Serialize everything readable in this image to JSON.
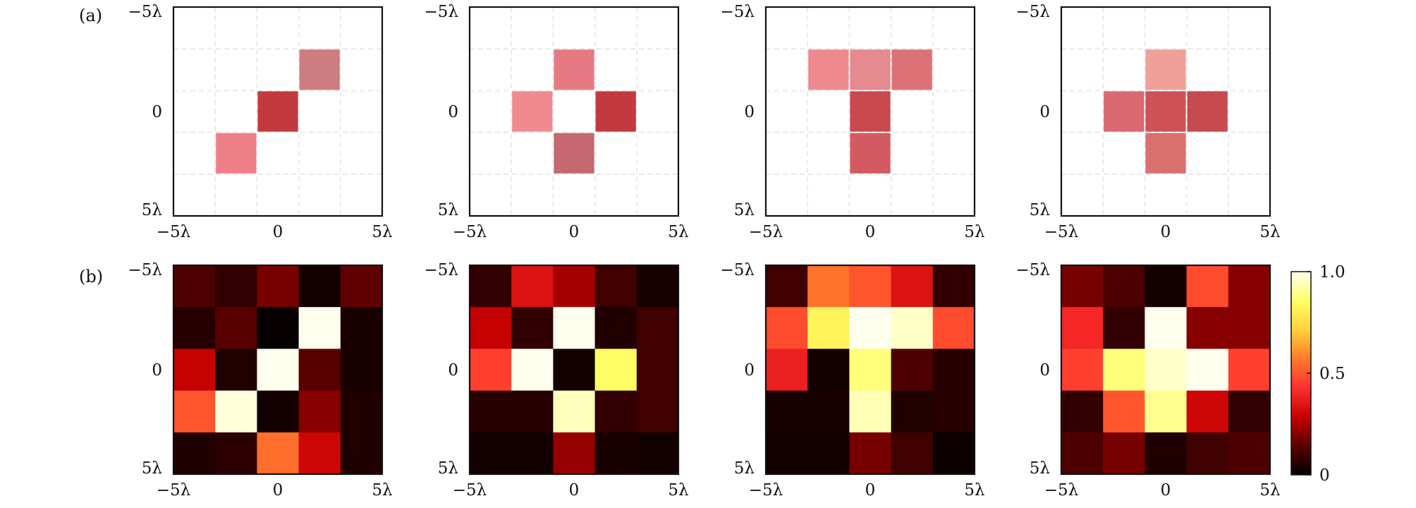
{
  "panel_labels": {
    "a": "(a)",
    "b": "(b)"
  },
  "axis_ticks": [
    "−5λ",
    "0",
    "5λ"
  ],
  "colorbar": {
    "ticks": [
      {
        "value": 1.0,
        "label": "1.0"
      },
      {
        "value": 0.5,
        "label": "0.5"
      },
      {
        "value": 0.0,
        "label": "0"
      }
    ],
    "stops": [
      "#000000",
      "#5a0000",
      "#c80000",
      "#ff3030",
      "#ff7a2a",
      "#ffd23a",
      "#ffff66",
      "#ffffee"
    ]
  },
  "chart_data": [
    {
      "type": "heatmap",
      "row": "a",
      "shape": "diagonal",
      "x_range": [
        "−5λ",
        "5λ"
      ],
      "y_range": [
        "−5λ",
        "5λ"
      ],
      "grid": true,
      "cells": [
        {
          "r": 1,
          "c": 3,
          "color": "#cd7c80"
        },
        {
          "r": 2,
          "c": 2,
          "color": "#c23a3e"
        },
        {
          "r": 3,
          "c": 1,
          "color": "#ee7f86"
        }
      ]
    },
    {
      "type": "heatmap",
      "row": "a",
      "shape": "ring",
      "x_range": [
        "−5λ",
        "5λ"
      ],
      "y_range": [
        "−5λ",
        "5λ"
      ],
      "grid": true,
      "cells": [
        {
          "r": 1,
          "c": 2,
          "color": "#e57a83"
        },
        {
          "r": 2,
          "c": 1,
          "color": "#f08a8e"
        },
        {
          "r": 2,
          "c": 3,
          "color": "#c33a3e"
        },
        {
          "r": 3,
          "c": 2,
          "color": "#c56870"
        }
      ]
    },
    {
      "type": "heatmap",
      "row": "a",
      "shape": "T",
      "x_range": [
        "−5λ",
        "5λ"
      ],
      "y_range": [
        "−5λ",
        "5λ"
      ],
      "grid": true,
      "cells": [
        {
          "r": 1,
          "c": 1,
          "color": "#ee8a8e"
        },
        {
          "r": 1,
          "c": 2,
          "color": "#e58a8e"
        },
        {
          "r": 1,
          "c": 3,
          "color": "#db7276"
        },
        {
          "r": 2,
          "c": 2,
          "color": "#c84a4e"
        },
        {
          "r": 3,
          "c": 2,
          "color": "#d25a60"
        }
      ]
    },
    {
      "type": "heatmap",
      "row": "a",
      "shape": "cross",
      "x_range": [
        "−5λ",
        "5λ"
      ],
      "y_range": [
        "−5λ",
        "5λ"
      ],
      "grid": true,
      "cells": [
        {
          "r": 1,
          "c": 2,
          "color": "#f0a098"
        },
        {
          "r": 2,
          "c": 1,
          "color": "#d96870"
        },
        {
          "r": 2,
          "c": 2,
          "color": "#cc5258"
        },
        {
          "r": 2,
          "c": 3,
          "color": "#c64a50"
        },
        {
          "r": 3,
          "c": 2,
          "color": "#d8706e"
        }
      ]
    },
    {
      "type": "heatmap",
      "row": "b",
      "x_range": [
        "−5λ",
        "5λ"
      ],
      "y_range": [
        "−5λ",
        "5λ"
      ],
      "vmin": 0,
      "vmax": 1,
      "values": [
        [
          0.12,
          0.08,
          0.18,
          0.03,
          0.15
        ],
        [
          0.06,
          0.14,
          0.01,
          1.0,
          0.04
        ],
        [
          0.28,
          0.05,
          1.0,
          0.14,
          0.04
        ],
        [
          0.5,
          0.98,
          0.03,
          0.2,
          0.05
        ],
        [
          0.05,
          0.07,
          0.55,
          0.3,
          0.05
        ]
      ]
    },
    {
      "type": "heatmap",
      "row": "b",
      "x_range": [
        "−5λ",
        "5λ"
      ],
      "y_range": [
        "−5λ",
        "5λ"
      ],
      "vmin": 0,
      "vmax": 1,
      "values": [
        [
          0.08,
          0.34,
          0.24,
          0.1,
          0.04
        ],
        [
          0.28,
          0.08,
          1.0,
          0.05,
          0.1
        ],
        [
          0.46,
          1.0,
          0.03,
          0.85,
          0.1
        ],
        [
          0.06,
          0.06,
          0.95,
          0.08,
          0.1
        ],
        [
          0.03,
          0.03,
          0.22,
          0.04,
          0.03
        ]
      ]
    },
    {
      "type": "heatmap",
      "row": "b",
      "x_range": [
        "−5λ",
        "5λ"
      ],
      "y_range": [
        "−5λ",
        "5λ"
      ],
      "vmin": 0,
      "vmax": 1,
      "values": [
        [
          0.1,
          0.56,
          0.5,
          0.34,
          0.08
        ],
        [
          0.48,
          0.82,
          1.0,
          0.96,
          0.48
        ],
        [
          0.38,
          0.03,
          0.88,
          0.12,
          0.06
        ],
        [
          0.04,
          0.04,
          0.94,
          0.05,
          0.06
        ],
        [
          0.03,
          0.03,
          0.18,
          0.1,
          0.02
        ]
      ]
    },
    {
      "type": "heatmap",
      "row": "b",
      "x_range": [
        "−5λ",
        "5λ"
      ],
      "y_range": [
        "−5λ",
        "5λ"
      ],
      "vmin": 0,
      "vmax": 1,
      "values": [
        [
          0.18,
          0.12,
          0.03,
          0.48,
          0.2
        ],
        [
          0.4,
          0.08,
          1.0,
          0.2,
          0.2
        ],
        [
          0.46,
          0.88,
          0.96,
          1.0,
          0.46
        ],
        [
          0.08,
          0.5,
          0.9,
          0.3,
          0.08
        ],
        [
          0.12,
          0.18,
          0.05,
          0.1,
          0.12
        ]
      ]
    }
  ]
}
